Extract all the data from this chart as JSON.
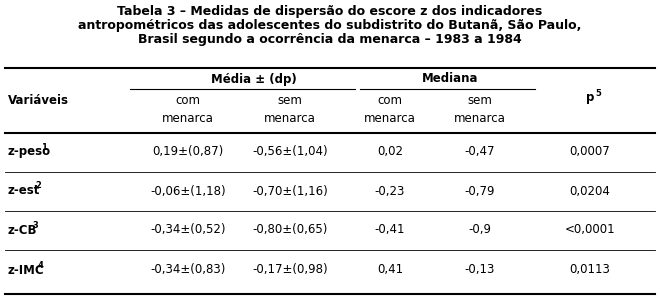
{
  "title_line1": "Tabela 3 – Medidas de dispersão do escore z dos indicadores",
  "title_line2": "antropométricos das adolescentes do subdistrito do Butanã, São Paulo,",
  "title_line3": "Brasil segundo a ocorrência da menarca – 1983 a 1984",
  "col_group1": "Média ± (dp)",
  "col_group2": "Mediana",
  "col_variavel": "Variáveis",
  "col_com": "com",
  "col_sem": "sem",
  "col_menarca": "menarca",
  "col_p": "p",
  "col_p_sup": "5",
  "rows": [
    {
      "var": "z-peso",
      "var_sup": "1",
      "media_com": "0,19±(0,87)",
      "media_sem": "-0,56±(1,04)",
      "med_com": "0,02",
      "med_sem": "-0,47",
      "p": "0,0007"
    },
    {
      "var": "z-est",
      "var_sup": "2",
      "media_com": "-0,06±(1,18)",
      "media_sem": "-0,70±(1,16)",
      "med_com": "-0,23",
      "med_sem": "-0,79",
      "p": "0,0204"
    },
    {
      "var": "z-CB",
      "var_sup": "3",
      "media_com": "-0,34±(0,52)",
      "media_sem": "-0,80±(0,65)",
      "med_com": "-0,41",
      "med_sem": "-0,9",
      "p": "<0,0001"
    },
    {
      "var": "z-IMC",
      "var_sup": "4",
      "media_com": "-0,34±(0,83)",
      "media_sem": "-0,17±(0,98)",
      "med_com": "0,41",
      "med_sem": "-0,13",
      "p": "0,0113"
    }
  ],
  "bg_color": "#ffffff",
  "text_color": "#000000",
  "font_size_title": 9.0,
  "font_size_header": 8.5,
  "font_size_data": 8.5
}
